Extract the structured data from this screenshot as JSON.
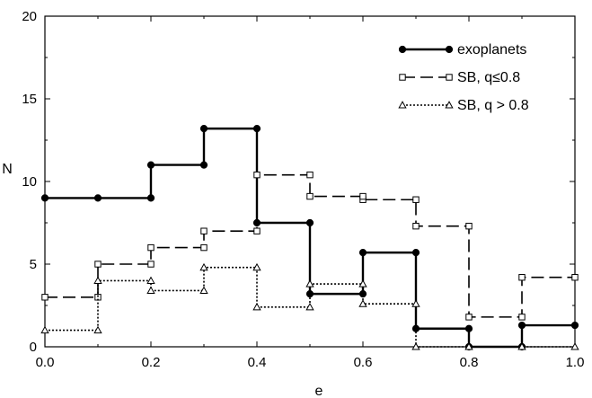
{
  "chart_data": {
    "type": "line",
    "step": true,
    "xlabel": "e",
    "ylabel": "N",
    "xlim": [
      0.0,
      1.0
    ],
    "ylim": [
      0,
      20
    ],
    "x_ticks": [
      "0.0",
      "0.2",
      "0.4",
      "0.6",
      "0.8",
      "1.0"
    ],
    "x_tick_values": [
      0.0,
      0.2,
      0.4,
      0.6,
      0.8,
      1.0
    ],
    "y_ticks": [
      "0",
      "5",
      "10",
      "15",
      "20"
    ],
    "y_tick_values": [
      0,
      5,
      10,
      15,
      20
    ],
    "grid": false,
    "legend_position": "top-right",
    "series": [
      {
        "name": "exoplanets",
        "line_style": "solid",
        "marker": "filled-circle",
        "x": [
          0.0,
          0.1,
          0.2,
          0.3,
          0.4,
          0.5,
          0.6,
          0.7,
          0.8,
          0.9,
          1.0
        ],
        "values": [
          9.0,
          9.0,
          11.0,
          13.2,
          7.5,
          3.2,
          5.7,
          1.1,
          0.0,
          1.3,
          1.3
        ]
      },
      {
        "name": "SB, q≤0.8",
        "line_style": "dashed",
        "marker": "open-square",
        "x": [
          0.0,
          0.1,
          0.2,
          0.3,
          0.4,
          0.5,
          0.6,
          0.7,
          0.8,
          0.9,
          1.0
        ],
        "values": [
          3.0,
          5.0,
          6.0,
          7.0,
          10.4,
          9.1,
          8.9,
          7.3,
          1.8,
          4.2,
          4.2
        ]
      },
      {
        "name": "SB, q > 0.8",
        "line_style": "dotted",
        "marker": "open-triangle",
        "x": [
          0.0,
          0.1,
          0.2,
          0.3,
          0.4,
          0.5,
          0.6,
          0.7,
          0.8,
          0.9,
          1.0
        ],
        "values": [
          1.0,
          4.0,
          3.4,
          4.8,
          2.4,
          3.8,
          2.6,
          0.0,
          0.0,
          0.0,
          0.0
        ]
      }
    ]
  }
}
